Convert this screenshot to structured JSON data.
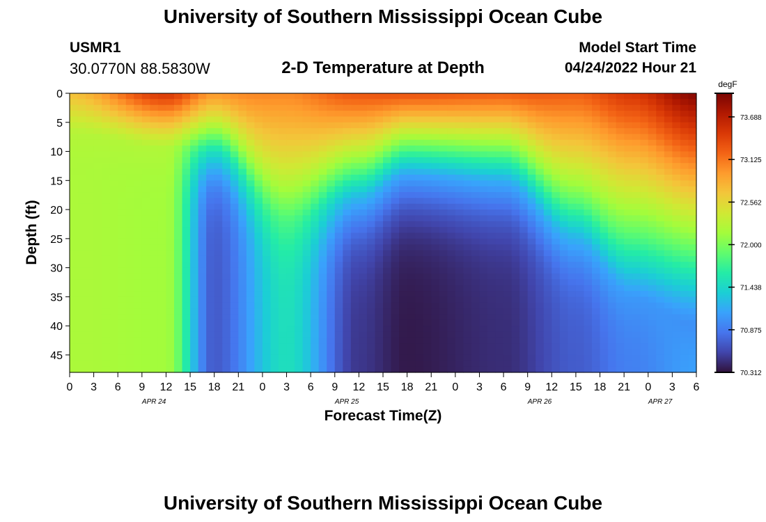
{
  "header": {
    "title": "University of Southern Mississippi Ocean Cube",
    "station_id": "USMR1",
    "coordinates": "30.0770N  88.5830W",
    "plot_title": "2-D Temperature at Depth",
    "model_start_label": "Model Start Time",
    "model_start_value": "04/24/2022 Hour 21"
  },
  "footer": {
    "title": "University of Southern Mississippi Ocean Cube"
  },
  "chart_data": {
    "type": "heatmap",
    "title": "2-D Temperature at Depth",
    "xlabel": "Forecast Time(Z)",
    "ylabel": "Depth (ft)",
    "x_ticks": [
      "0",
      "3",
      "6",
      "9",
      "12",
      "15",
      "18",
      "21",
      "0",
      "3",
      "6",
      "9",
      "12",
      "15",
      "18",
      "21",
      "0",
      "3",
      "6",
      "9",
      "12",
      "15",
      "18",
      "21",
      "0",
      "3",
      "6"
    ],
    "date_labels": [
      {
        "text": "APR 24",
        "tick_index": 3.5
      },
      {
        "text": "APR 25",
        "tick_index": 11.5
      },
      {
        "text": "APR 26",
        "tick_index": 19.5
      },
      {
        "text": "APR 27",
        "tick_index": 24.5
      }
    ],
    "y_ticks": [
      "0",
      "5",
      "10",
      "15",
      "20",
      "25",
      "30",
      "35",
      "40",
      "45"
    ],
    "xlim_hours": [
      0,
      78
    ],
    "ylim_ft": [
      0,
      48
    ],
    "colorbar": {
      "unit": "degF",
      "min": 70.312,
      "max": 74.0,
      "tick_labels": [
        "73.688",
        "73.125",
        "72.562",
        "72.000",
        "71.438",
        "70.875",
        "70.312"
      ]
    },
    "colormap": [
      "#30123b",
      "#4145ab",
      "#4675ed",
      "#39a2fc",
      "#1bcfd4",
      "#24eca6",
      "#61fc6c",
      "#a4fc3b",
      "#d1e834",
      "#f3c63a",
      "#fe9b2d",
      "#f36315",
      "#d93806",
      "#b11901",
      "#7a0402"
    ],
    "grid_resolution": {
      "cols": 78,
      "rows": 48
    },
    "temperature_profile": {
      "time_hours": [
        0,
        12,
        18,
        27,
        36,
        42,
        54,
        63,
        70,
        78
      ],
      "surface_degF": [
        72.75,
        73.56,
        73.1,
        73.05,
        73.35,
        73.45,
        73.35,
        73.25,
        73.5,
        73.95
      ],
      "thermocline_depth_ft": [
        7,
        9.5,
        10,
        22,
        18,
        14,
        15,
        25,
        35,
        40
      ],
      "thermocline_width_ft": [
        2,
        3,
        3.5,
        4,
        4.5,
        4.5,
        4.5,
        4,
        3.5,
        3
      ],
      "upper_layer_base_degF": [
        72.3,
        72.3,
        72.3,
        72.1,
        71.95,
        71.9,
        71.9,
        71.7,
        71.2,
        70.9
      ],
      "deep_degF": [
        72.2,
        72.15,
        70.7,
        71.5,
        70.5,
        70.35,
        70.45,
        70.7,
        70.9,
        71.1
      ]
    }
  }
}
